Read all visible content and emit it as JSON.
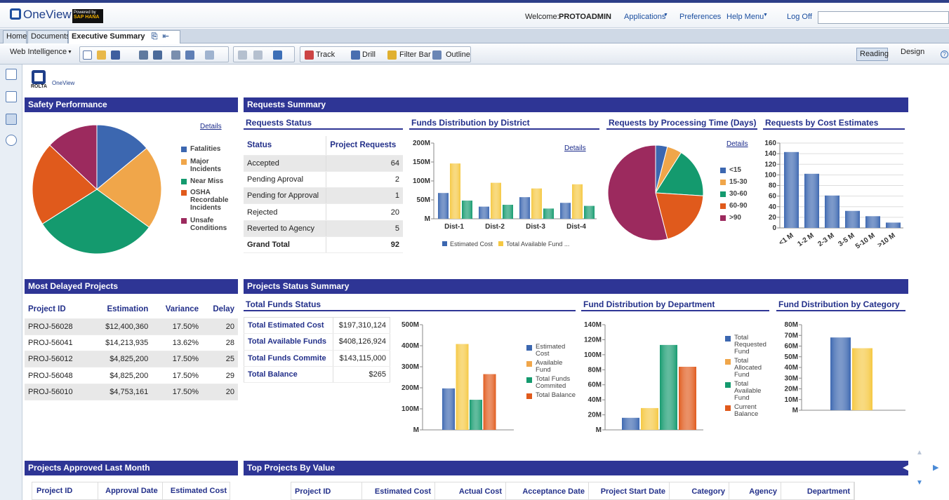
{
  "header": {
    "logo": "OneView",
    "powered_by": "Powered by",
    "powered_brand": "SAP HANA",
    "welcome": "Welcome:",
    "user": "PROTOADMIN",
    "applications": "Applications",
    "preferences": "Preferences",
    "help": "Help Menu",
    "logoff": "Log Off",
    "search_value": ""
  },
  "tabs": [
    {
      "label": "Home"
    },
    {
      "label": "Documents"
    },
    {
      "label": "Executive Summary"
    }
  ],
  "toolbar": {
    "mode": "Web Intelligence",
    "track": "Track",
    "drill": "Drill",
    "filter": "Filter Bar",
    "outline": "Outline",
    "reading": "Reading",
    "design": "Design"
  },
  "report_logo": {
    "line1": "ROLTA",
    "line2": "OneView"
  },
  "colors": {
    "header": "#2e3595",
    "blue": "#3c67b0",
    "orange": "#f0a64a",
    "yellow": "#f5c842",
    "green": "#149a6e",
    "red": "#e05a1c",
    "maroon": "#9c2a5e"
  },
  "safety": {
    "title": "Safety Performance",
    "details": "Details",
    "legend": [
      "Fatalities",
      "Major Incidents",
      "Near Miss",
      "OSHA Recordable Incidents",
      "Unsafe Conditions"
    ]
  },
  "requests": {
    "title": "Requests Summary",
    "status": {
      "title": "Requests Status",
      "col1": "Status",
      "col2": "Project Requests",
      "rows": [
        [
          "Accepted",
          "64"
        ],
        [
          "Pending Aproval",
          "2"
        ],
        [
          "Pending for Approval",
          "1"
        ],
        [
          "Rejected",
          "20"
        ],
        [
          "Reverted to Agency",
          "5"
        ]
      ],
      "total_label": "Grand Total",
      "total": "92"
    },
    "funds_district": {
      "title": "Funds Distribution by District",
      "details": "Details",
      "yticks": [
        "200M",
        "150M",
        "100M",
        "50M",
        "M"
      ],
      "categories": [
        "Dist-1",
        "Dist-2",
        "Dist-3",
        "Dist-4"
      ],
      "legend": [
        "Estimated Cost",
        "Total Available Fund ..."
      ]
    },
    "processing": {
      "title": "Requests by Processing Time (Days)",
      "details": "Details",
      "legend": [
        "<15",
        "15-30",
        "30-60",
        "60-90",
        ">90"
      ]
    },
    "cost_est": {
      "title": "Requests by Cost Estimates",
      "yticks": [
        "160",
        "140",
        "120",
        "100",
        "80",
        "60",
        "40",
        "20",
        "0"
      ],
      "categories": [
        "<1 M",
        "1-2 M",
        "2-3 M",
        "3-5 M",
        "5-10 M",
        ">10 M"
      ]
    }
  },
  "delayed": {
    "title": "Most Delayed Projects",
    "cols": [
      "Project ID",
      "Estimation",
      "Variance",
      "Delay"
    ],
    "rows": [
      [
        "PROJ-56028",
        "$12,400,360",
        "17.50%",
        "20"
      ],
      [
        "PROJ-56041",
        "$14,213,935",
        "13.62%",
        "28"
      ],
      [
        "PROJ-56012",
        "$4,825,200",
        "17.50%",
        "25"
      ],
      [
        "PROJ-56048",
        "$4,825,200",
        "17.50%",
        "29"
      ],
      [
        "PROJ-56010",
        "$4,753,161",
        "17.50%",
        "20"
      ]
    ]
  },
  "proj_status": {
    "title": "Projects Status Summary",
    "funds_status": {
      "title": "Total Funds Status",
      "rows": [
        [
          "Total Estimated Cost",
          "$197,310,124"
        ],
        [
          "Total Available Funds",
          "$408,126,924"
        ],
        [
          "Total Funds Commite",
          "$143,115,000"
        ],
        [
          "Total Balance",
          "$265"
        ]
      ],
      "yticks": [
        "500M",
        "400M",
        "300M",
        "200M",
        "100M",
        "M"
      ],
      "legend": [
        "Estimated Cost",
        "Available Fund",
        "Total Funds Commited",
        "Total Balance"
      ]
    },
    "dept": {
      "title": "Fund Distribution by Department",
      "yticks": [
        "140M",
        "120M",
        "100M",
        "80M",
        "60M",
        "40M",
        "20M",
        "M"
      ],
      "legend": [
        "Total Requested Fund",
        "Total Allocated Fund",
        "Total Available Fund",
        "Current Balance"
      ]
    },
    "category": {
      "title": "Fund Distribution by Category",
      "yticks": [
        "80M",
        "70M",
        "60M",
        "50M",
        "40M",
        "30M",
        "20M",
        "10M",
        "M"
      ],
      "legend": [
        "Estimated Cost",
        "Fund Commited"
      ]
    }
  },
  "approved": {
    "title": "Projects Approved Last Month",
    "cols": [
      "Project ID",
      "Approval Date",
      "Estimated Cost"
    ]
  },
  "top_projects": {
    "title": "Top Projects By Value",
    "cols": [
      "Project ID",
      "Estimated Cost",
      "Actual Cost",
      "Acceptance Date",
      "Project Start Date",
      "Category",
      "Agency",
      "Department"
    ]
  },
  "chart_data": [
    {
      "type": "pie",
      "title": "Safety Performance",
      "labels": [
        "Fatalities",
        "Major Incidents",
        "Near Miss",
        "OSHA Recordable Incidents",
        "Unsafe Conditions"
      ],
      "values": [
        14,
        21,
        31,
        21,
        13
      ]
    },
    {
      "type": "bar",
      "title": "Funds Distribution by District",
      "categories": [
        "Dist-1",
        "Dist-2",
        "Dist-3",
        "Dist-4"
      ],
      "series": [
        {
          "name": "Estimated Cost",
          "values": [
            68,
            32,
            57,
            42
          ]
        },
        {
          "name": "Total Available Fund ...",
          "values": [
            146,
            95,
            80,
            91
          ]
        },
        {
          "name": "",
          "values": [
            48,
            37,
            27,
            34
          ]
        }
      ],
      "ylim": [
        0,
        200
      ]
    },
    {
      "type": "pie",
      "title": "Requests by Processing Time (Days)",
      "labels": [
        "<15",
        "15-30",
        "30-60",
        "60-90",
        ">90"
      ],
      "values": [
        4,
        5,
        17,
        20,
        54
      ]
    },
    {
      "type": "bar",
      "title": "Requests by Cost Estimates",
      "categories": [
        "<1 M",
        "1-2 M",
        "2-3 M",
        "3-5 M",
        "5-10 M",
        ">10 M"
      ],
      "values": [
        143,
        102,
        61,
        32,
        22,
        10
      ],
      "ylim": [
        0,
        160
      ]
    },
    {
      "type": "bar",
      "title": "Total Funds Status",
      "categories": [
        "Estimated Cost",
        "Available Fund",
        "Total Funds Commited",
        "Total Balance"
      ],
      "values": [
        197,
        408,
        143,
        265
      ],
      "ylim": [
        0,
        500
      ]
    },
    {
      "type": "bar",
      "title": "Fund Distribution by Department",
      "categories": [
        "Total Requested Fund",
        "Total Allocated Fund",
        "Total Available Fund",
        "Current Balance"
      ],
      "values": [
        16,
        29,
        113,
        84
      ],
      "ylim": [
        0,
        140
      ]
    },
    {
      "type": "bar",
      "title": "Fund Distribution by Category",
      "categories": [
        "Estimated Cost",
        "Fund Commited"
      ],
      "values": [
        68,
        58
      ],
      "ylim": [
        0,
        80
      ]
    }
  ]
}
